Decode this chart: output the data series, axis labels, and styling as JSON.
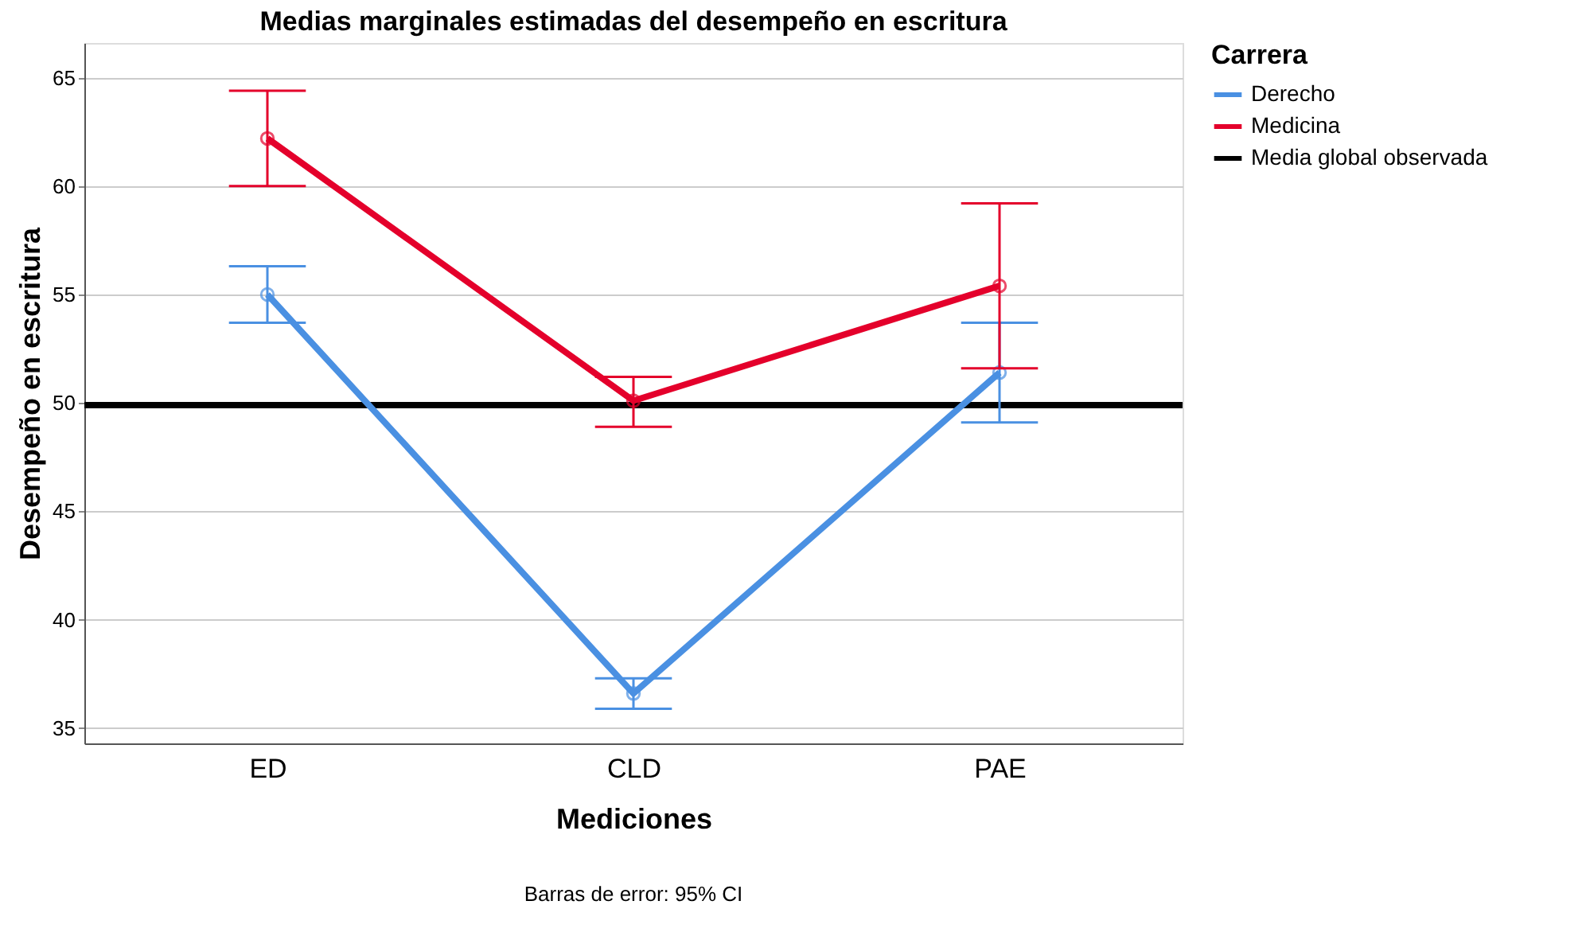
{
  "chart_data": {
    "type": "line",
    "title": "Medias marginales estimadas del desempeño en escritura",
    "xlabel": "Mediciones",
    "ylabel": "Desempeño en escritura",
    "legend_title": "Carrera",
    "categories": [
      "ED",
      "CLD",
      "PAE"
    ],
    "series": [
      {
        "name": "Derecho",
        "color": "#4a90e2",
        "values": [
          55.0,
          36.6,
          51.4
        ],
        "errors": [
          [
            53.7,
            56.3
          ],
          [
            35.9,
            37.3
          ],
          [
            49.1,
            53.7
          ]
        ]
      },
      {
        "name": "Medicina",
        "color": "#e4002b",
        "values": [
          62.2,
          50.1,
          55.4
        ],
        "errors": [
          [
            60.0,
            64.4
          ],
          [
            48.9,
            51.2
          ],
          [
            51.6,
            59.2
          ]
        ]
      }
    ],
    "ref_lines": [
      {
        "axis": "y",
        "value": 49.9,
        "label": "Media global observada",
        "color": "#000000"
      }
    ],
    "ylim": [
      34.3,
      66.6
    ],
    "yticks": [
      35,
      40,
      45,
      50,
      55,
      60,
      65
    ],
    "grid": "y",
    "legend": "top right",
    "marker": "circle",
    "annotations": [
      "Barras de error: 95% CI"
    ]
  }
}
